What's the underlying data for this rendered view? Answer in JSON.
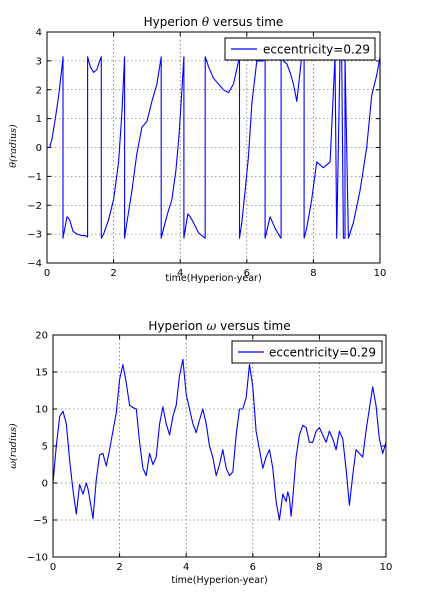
{
  "chart_data": [
    {
      "type": "line",
      "title_prefix": "Hyperion ",
      "title_symbol": "θ",
      "title_suffix": " versus time",
      "xlabel": "time(Hyperion-year)",
      "ylabel": "θ(radius)",
      "xlim": [
        0,
        10
      ],
      "ylim": [
        -4,
        4
      ],
      "xticks": [
        0,
        2,
        4,
        6,
        8,
        10
      ],
      "yticks": [
        -4,
        -3,
        -2,
        -1,
        0,
        1,
        2,
        3,
        4
      ],
      "grid": true,
      "legend_position": "top-right",
      "series": [
        {
          "name": "eccentricity=0.29",
          "color": "#0000ff",
          "x": [
            0.0,
            0.08,
            0.15,
            0.25,
            0.35,
            0.45,
            0.48,
            0.48,
            0.52,
            0.6,
            0.68,
            0.78,
            0.9,
            1.05,
            1.15,
            1.22,
            1.22,
            1.3,
            1.4,
            1.5,
            1.58,
            1.63,
            1.63,
            1.7,
            1.85,
            2.0,
            2.15,
            2.25,
            2.33,
            2.33,
            2.4,
            2.55,
            2.7,
            2.85,
            3.0,
            3.15,
            3.3,
            3.43,
            3.43,
            3.5,
            3.62,
            3.75,
            3.87,
            3.97,
            4.05,
            4.11,
            4.11,
            4.17,
            4.23,
            4.3,
            4.4,
            4.55,
            4.7,
            4.75,
            4.75,
            4.85,
            5.0,
            5.15,
            5.3,
            5.45,
            5.6,
            5.78,
            5.78,
            5.85,
            5.95,
            6.05,
            6.15,
            6.3,
            6.4,
            6.48,
            6.55,
            6.55,
            6.62,
            6.7,
            6.85,
            7.0,
            7.03,
            7.03,
            7.1,
            7.2,
            7.3,
            7.4,
            7.5,
            7.65,
            7.72,
            7.72,
            7.8,
            7.95,
            8.1,
            8.3,
            8.5,
            8.65,
            8.7,
            8.7,
            8.8,
            8.85,
            8.9,
            8.95,
            8.95,
            9.05,
            9.2,
            9.4,
            9.6,
            9.75,
            9.9,
            10.0,
            10.0
          ],
          "y": [
            0.0,
            0.0,
            0.3,
            1.0,
            1.8,
            2.8,
            3.14,
            -3.14,
            -2.9,
            -2.4,
            -2.5,
            -2.9,
            -3.0,
            -3.05,
            -3.05,
            -3.1,
            3.14,
            2.8,
            2.6,
            2.7,
            3.0,
            3.14,
            -3.14,
            -3.0,
            -2.5,
            -1.8,
            -0.5,
            1.2,
            3.14,
            -3.14,
            -2.6,
            -1.5,
            -0.2,
            0.7,
            0.9,
            1.6,
            2.2,
            3.14,
            -3.14,
            -2.8,
            -2.3,
            -1.8,
            -0.8,
            0.5,
            2.0,
            3.14,
            -3.14,
            -2.7,
            -2.3,
            -2.4,
            -2.6,
            -2.95,
            -3.1,
            -3.14,
            3.14,
            2.8,
            2.4,
            2.2,
            2.0,
            1.9,
            2.2,
            3.14,
            -3.14,
            -2.6,
            -1.5,
            -0.3,
            1.5,
            3.0,
            3.0,
            3.0,
            3.14,
            -3.14,
            -2.8,
            -2.4,
            -2.8,
            -3.1,
            -3.14,
            3.14,
            3.0,
            2.9,
            2.6,
            2.2,
            1.6,
            3.14,
            3.14,
            -3.14,
            -2.8,
            -1.8,
            -0.5,
            -0.7,
            -0.5,
            3.14,
            -3.1,
            -3.14,
            3.14,
            3.14,
            -3.14,
            -3.14,
            3.14,
            -3.14,
            -2.6,
            -1.5,
            0.0,
            1.8,
            2.5,
            3.14,
            -3.14
          ]
        }
      ]
    },
    {
      "type": "line",
      "title_prefix": "Hyperion ",
      "title_symbol": "ω",
      "title_suffix": " versus time",
      "xlabel": "time(Hyperion-year)",
      "ylabel": "ω(radius)",
      "xlim": [
        0,
        10
      ],
      "ylim": [
        -10,
        20
      ],
      "xticks": [
        0,
        2,
        4,
        6,
        8,
        10
      ],
      "yticks": [
        -10,
        -5,
        0,
        5,
        10,
        15,
        20
      ],
      "grid": true,
      "legend_position": "top-right",
      "series": [
        {
          "name": "eccentricity=0.29",
          "color": "#0000ff",
          "x": [
            0.0,
            0.1,
            0.2,
            0.3,
            0.4,
            0.5,
            0.6,
            0.7,
            0.8,
            0.9,
            1.0,
            1.05,
            1.1,
            1.2,
            1.3,
            1.4,
            1.5,
            1.6,
            1.7,
            1.8,
            1.9,
            2.0,
            2.1,
            2.2,
            2.3,
            2.4,
            2.5,
            2.6,
            2.7,
            2.8,
            2.9,
            3.0,
            3.1,
            3.2,
            3.3,
            3.4,
            3.5,
            3.6,
            3.7,
            3.8,
            3.9,
            4.0,
            4.1,
            4.2,
            4.3,
            4.4,
            4.5,
            4.6,
            4.7,
            4.8,
            4.9,
            5.0,
            5.1,
            5.2,
            5.3,
            5.4,
            5.5,
            5.6,
            5.7,
            5.8,
            5.9,
            6.0,
            6.1,
            6.2,
            6.3,
            6.4,
            6.5,
            6.6,
            6.7,
            6.8,
            6.9,
            7.0,
            7.05,
            7.1,
            7.15,
            7.2,
            7.3,
            7.4,
            7.5,
            7.6,
            7.7,
            7.8,
            7.9,
            8.0,
            8.1,
            8.2,
            8.3,
            8.4,
            8.5,
            8.6,
            8.7,
            8.8,
            8.9,
            9.0,
            9.1,
            9.2,
            9.3,
            9.4,
            9.5,
            9.6,
            9.7,
            9.8,
            9.9,
            10.0
          ],
          "y": [
            0.0,
            5.0,
            9.0,
            9.7,
            8.0,
            3.0,
            -1.0,
            -4.2,
            -0.2,
            -1.5,
            0.0,
            -0.8,
            -2.0,
            -4.8,
            0.5,
            3.8,
            4.0,
            2.3,
            4.5,
            7.0,
            9.5,
            14.0,
            16.0,
            13.5,
            10.5,
            10.2,
            10.0,
            5.5,
            2.0,
            1.0,
            4.0,
            2.5,
            3.5,
            8.0,
            10.3,
            8.0,
            6.5,
            9.0,
            10.5,
            14.5,
            16.7,
            12.0,
            10.0,
            8.0,
            6.8,
            8.5,
            10.0,
            8.0,
            5.0,
            3.5,
            1.0,
            2.5,
            4.5,
            2.0,
            1.0,
            1.5,
            6.5,
            10.0,
            10.0,
            11.5,
            16.0,
            13.0,
            7.0,
            4.5,
            2.0,
            3.5,
            4.5,
            2.0,
            -2.5,
            -5.0,
            -1.5,
            -2.5,
            -1.2,
            -2.0,
            -4.5,
            -2.0,
            3.5,
            6.5,
            7.8,
            7.5,
            5.5,
            5.5,
            7.0,
            7.5,
            6.5,
            5.5,
            7.0,
            6.0,
            4.5,
            7.0,
            6.0,
            2.0,
            -3.0,
            1.0,
            4.5,
            4.0,
            3.5,
            7.0,
            10.0,
            13.0,
            10.5,
            6.0,
            4.0,
            5.5
          ]
        }
      ]
    }
  ]
}
